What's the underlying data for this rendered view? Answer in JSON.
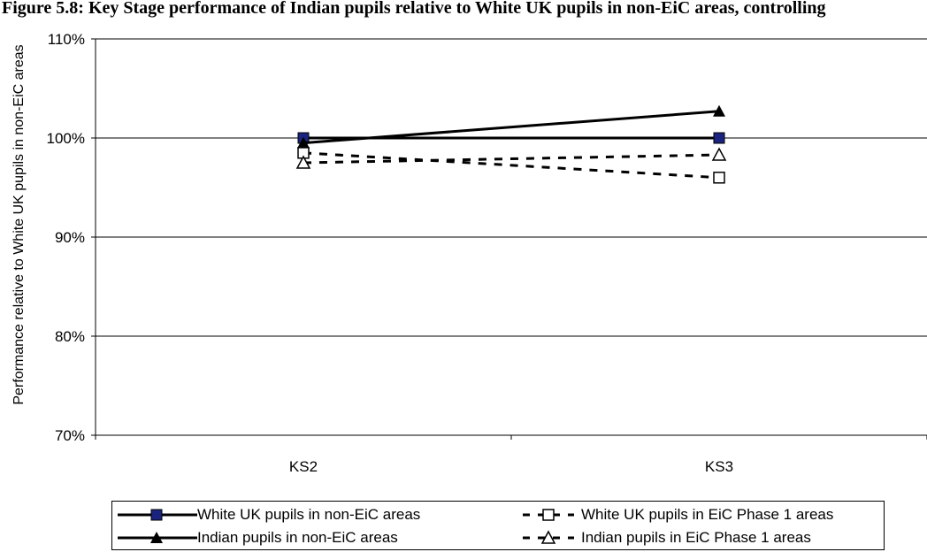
{
  "title": "Figure 5.8: Key Stage performance of Indian pupils relative to White UK pupils in non-EiC areas, controlling",
  "chart_data": {
    "type": "line",
    "categories": [
      "KS2",
      "KS3"
    ],
    "ylabel": "Performance relative to White UK pupils in non-EiC areas",
    "xlabel": "",
    "ylim": [
      70,
      110
    ],
    "yticks": [
      70,
      80,
      90,
      100,
      110
    ],
    "ytick_labels": [
      "70%",
      "80%",
      "90%",
      "100%",
      "110%"
    ],
    "grid": true,
    "legend_position": "bottom",
    "series": [
      {
        "name": "White UK pupils in non-EiC areas",
        "values": [
          100,
          100
        ],
        "style": "solid",
        "marker": "square-filled",
        "marker_color": "#1a237e"
      },
      {
        "name": "White UK pupils in EiC Phase 1 areas",
        "values": [
          98.5,
          96
        ],
        "style": "dashed",
        "marker": "square-open",
        "marker_color": "#000000"
      },
      {
        "name": "Indian pupils in non-EiC areas",
        "values": [
          99.5,
          102.7
        ],
        "style": "solid",
        "marker": "triangle-filled",
        "marker_color": "#000000"
      },
      {
        "name": "Indian pupils in EiC Phase 1 areas",
        "values": [
          97.5,
          98.3
        ],
        "style": "dashed",
        "marker": "triangle-open",
        "marker_color": "#000000"
      }
    ]
  }
}
